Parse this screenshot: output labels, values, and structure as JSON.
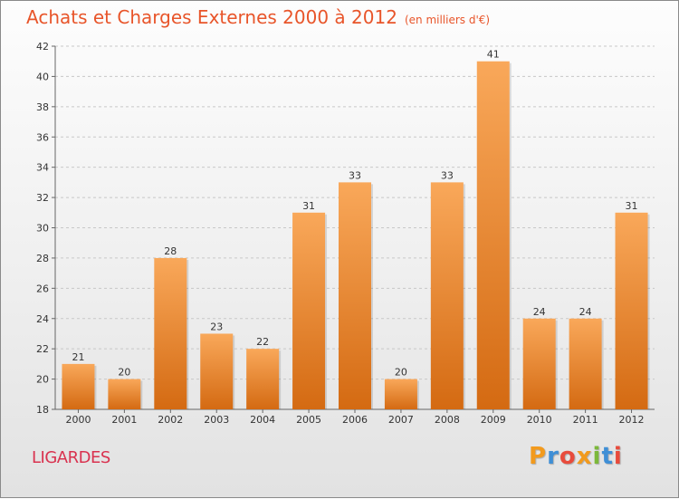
{
  "title": {
    "main": "Achats et Charges Externes 2000 à 2012",
    "unit": "(en milliers d'€)"
  },
  "commune": "LIGARDES",
  "logo": {
    "text": "Proxiti",
    "letter_colors": [
      "#f29a1d",
      "#3f8fd6",
      "#e84b3c",
      "#f29a1d",
      "#7cb83a",
      "#3f8fd6",
      "#e84b3c"
    ]
  },
  "colors": {
    "title": "#e8552a",
    "commune": "#d9324f",
    "bar_top": "#f9a85a",
    "bar_bottom": "#d46a12"
  },
  "chart_data": {
    "type": "bar",
    "categories": [
      "2000",
      "2001",
      "2002",
      "2003",
      "2004",
      "2005",
      "2006",
      "2007",
      "2008",
      "2009",
      "2010",
      "2011",
      "2012"
    ],
    "values": [
      21,
      20,
      28,
      23,
      22,
      31,
      33,
      20,
      33,
      41,
      24,
      24,
      31
    ],
    "ylim": [
      18,
      42
    ],
    "yticks": [
      18,
      20,
      22,
      24,
      26,
      28,
      30,
      32,
      34,
      36,
      38,
      40,
      42
    ],
    "grid": true,
    "data_labels": true
  }
}
